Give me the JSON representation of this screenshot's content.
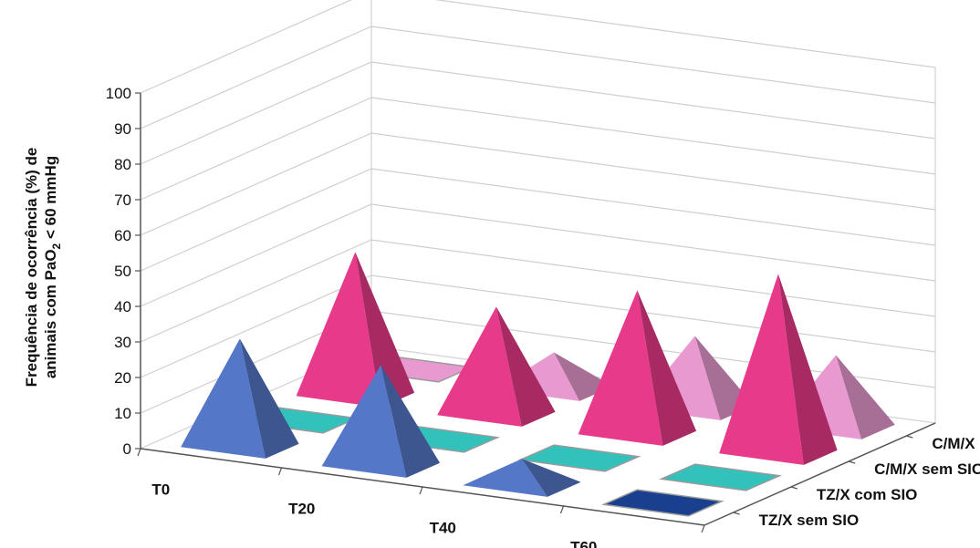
{
  "chart_data": {
    "type": "bar",
    "bar_shape": "pyramid-3d",
    "ylabel_line1": "Frequência de ocorrência (%) de",
    "ylabel_line2_pre": "animais com PaO",
    "ylabel_line2_sub": "2",
    "ylabel_line2_post": " < 60 mmHg",
    "ylim": [
      0,
      100
    ],
    "yticks": [
      0,
      10,
      20,
      30,
      40,
      50,
      60,
      70,
      80,
      90,
      100
    ],
    "categories": [
      "T0",
      "T20",
      "T40",
      "T60"
    ],
    "series": [
      {
        "name": "TZ/X sem SIO",
        "color": "#5577c8",
        "values": [
          30,
          28,
          7,
          0
        ]
      },
      {
        "name": "TZ/X com SIO",
        "color": "#33c2bb",
        "values": [
          0,
          0,
          0,
          0
        ]
      },
      {
        "name": "C/M/X sem SIO",
        "color": "#e83a8a",
        "values": [
          40,
          30,
          40,
          50
        ]
      },
      {
        "name": "C/M/X com SIO",
        "color": "#e89ad0",
        "values": [
          0,
          10,
          20,
          20
        ]
      }
    ],
    "empty_marker_colors": {
      "TZ/X sem SIO": "#1b3f8f",
      "TZ/X com SIO": "#33c2bb",
      "C/M/X sem SIO": "#c8509a",
      "C/M/X com SIO": "#e89ad0"
    },
    "grid": true,
    "legend": "depth-axis-right"
  }
}
